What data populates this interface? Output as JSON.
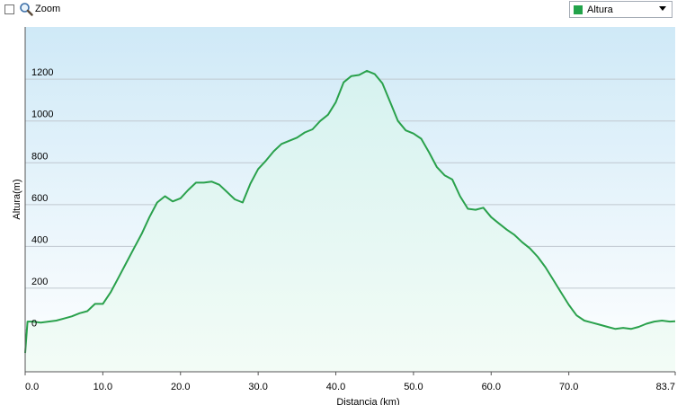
{
  "toolbar": {
    "zoom_label": "Zoom",
    "zoom_checked": false,
    "series_select": {
      "selected": "Altura",
      "swatch_color": "#22a34a"
    }
  },
  "chart_data": {
    "type": "area",
    "xlabel": "Distancia (km)",
    "ylabel": "Altura(m)",
    "xlim": [
      0,
      83.7
    ],
    "ylim": [
      -200,
      1450
    ],
    "x_ticks": [
      0,
      10,
      20,
      30,
      40,
      50,
      60,
      70,
      83.7
    ],
    "x_tick_labels": [
      "0.0",
      "10.0",
      "20.0",
      "30.0",
      "40.0",
      "50.0",
      "60.0",
      "70.0",
      "83.7"
    ],
    "y_ticks": [
      0,
      200,
      400,
      600,
      800,
      1000,
      1200
    ],
    "y_tick_labels": [
      "0",
      "200",
      "400",
      "600",
      "800",
      "1000",
      "1200"
    ],
    "grid": true,
    "colors": {
      "line": "#2aa14c",
      "fill_top": "#d6f2f0",
      "fill_bottom": "#f3fcf6",
      "bg_top": "#cfe9f7",
      "bg_bottom": "#ffffff",
      "grid": "#c0c8d0"
    },
    "series": [
      {
        "name": "Altura",
        "x": [
          0,
          0.3,
          1,
          2,
          3,
          4,
          5,
          6,
          7,
          8,
          9,
          10,
          11,
          12,
          13,
          14,
          15,
          16,
          17,
          18,
          19,
          20,
          21,
          22,
          23,
          24,
          25,
          26,
          27,
          28,
          29,
          30,
          31,
          32,
          33,
          34,
          35,
          36,
          37,
          38,
          39,
          40,
          41,
          42,
          43,
          44,
          45,
          46,
          47,
          48,
          49,
          50,
          51,
          52,
          53,
          54,
          55,
          56,
          57,
          58,
          59,
          60,
          61,
          62,
          63,
          64,
          65,
          66,
          67,
          68,
          69,
          70,
          71,
          72,
          73,
          74,
          75,
          76,
          77,
          78,
          79,
          80,
          81,
          82,
          83,
          83.7
        ],
        "values": [
          -110,
          40,
          40,
          35,
          40,
          45,
          55,
          65,
          80,
          90,
          125,
          125,
          180,
          250,
          320,
          390,
          460,
          540,
          610,
          640,
          615,
          630,
          670,
          705,
          705,
          710,
          695,
          660,
          625,
          610,
          700,
          770,
          810,
          855,
          890,
          905,
          920,
          945,
          960,
          1000,
          1030,
          1090,
          1185,
          1215,
          1220,
          1240,
          1225,
          1180,
          1090,
          1000,
          955,
          940,
          915,
          850,
          780,
          740,
          720,
          640,
          580,
          575,
          585,
          540,
          510,
          480,
          455,
          420,
          390,
          350,
          300,
          240,
          180,
          120,
          70,
          45,
          35,
          25,
          15,
          5,
          10,
          5,
          15,
          30,
          40,
          45,
          40,
          42
        ]
      }
    ]
  }
}
